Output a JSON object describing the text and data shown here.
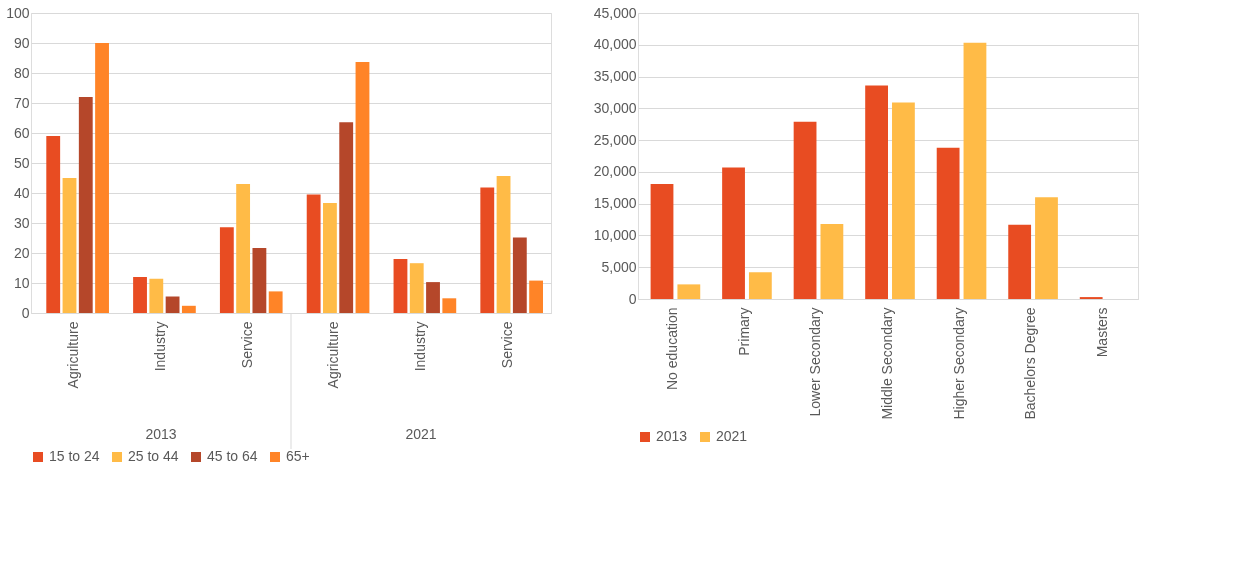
{
  "chart_data": [
    {
      "type": "bar",
      "categories": [
        "Agriculture",
        "Industry",
        "Service",
        "Agriculture",
        "Industry",
        "Service"
      ],
      "series": [
        {
          "name": "15 to 24",
          "color": "#e84c22",
          "values": [
            59,
            12,
            28.6,
            39.5,
            18,
            41.8
          ]
        },
        {
          "name": "25 to 44",
          "color": "#ffbb47",
          "values": [
            45,
            11.4,
            43,
            36.7,
            16.6,
            45.7
          ]
        },
        {
          "name": "45 to 64",
          "color": "#b5472a",
          "values": [
            72,
            5.5,
            21.7,
            63.6,
            10.3,
            25.2
          ]
        },
        {
          "name": "65+",
          "color": "#ff8427",
          "values": [
            90,
            2.4,
            7.2,
            83.7,
            4.9,
            10.8
          ]
        }
      ],
      "ylim": [
        0,
        100
      ],
      "yticks": [
        0,
        10,
        20,
        30,
        40,
        50,
        60,
        70,
        80,
        90,
        100
      ],
      "grid": "y",
      "legend": "bottom",
      "annotations": [
        "2013",
        "2021"
      ]
    },
    {
      "type": "bar",
      "categories": [
        "No education",
        "Primary",
        "Lower Secondary",
        "Middle Secondary",
        "Higher Secondary",
        "Bachelors Degree",
        "Masters"
      ],
      "series": [
        {
          "name": "2013",
          "color": "#e84c22",
          "values": [
            18100,
            20700,
            27900,
            33600,
            23800,
            11700,
            300
          ]
        },
        {
          "name": "2021",
          "color": "#ffbb47",
          "values": [
            2300,
            4200,
            11800,
            30900,
            40300,
            16000,
            0
          ]
        }
      ],
      "ylim": [
        0,
        45000
      ],
      "yticks": [
        0,
        {
          "value": 5000,
          "label": "5,000"
        },
        {
          "value": 10000,
          "label": "10,000"
        },
        {
          "value": 15000,
          "label": "15,000"
        },
        {
          "value": 20000,
          "label": "20,000"
        },
        {
          "value": 25000,
          "label": "25,000"
        },
        {
          "value": 30000,
          "label": "30,000"
        },
        {
          "value": 35000,
          "label": "35,000"
        },
        {
          "value": 40000,
          "label": "40,000"
        },
        {
          "value": 45000,
          "label": "45,000"
        }
      ],
      "grid": "y",
      "legend": "bottom"
    }
  ]
}
